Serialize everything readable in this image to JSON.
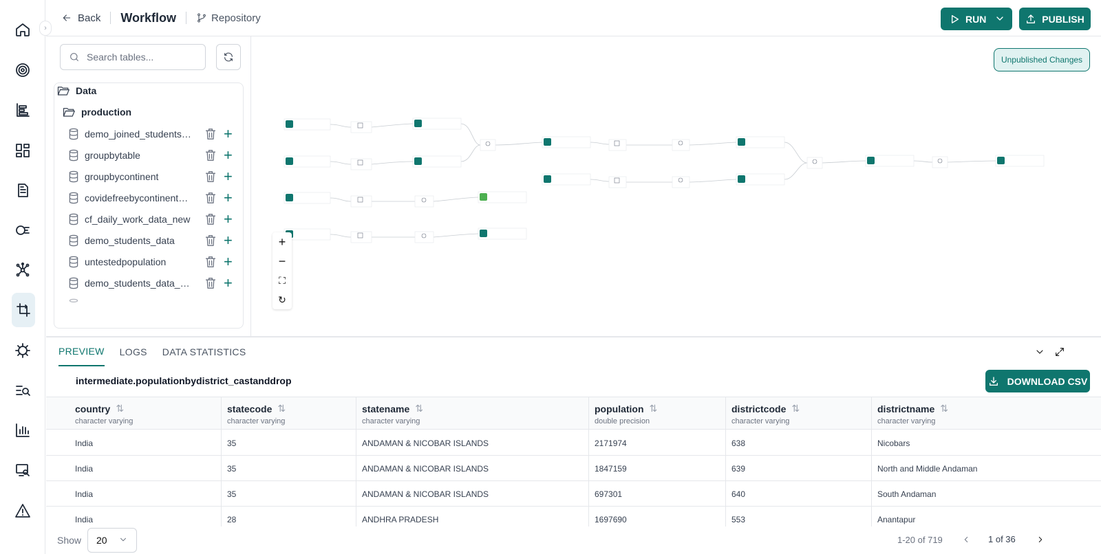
{
  "topbar": {
    "back_label": "Back",
    "title": "Workflow",
    "repository_label": "Repository",
    "run_label": "RUN",
    "publish_label": "PUBLISH"
  },
  "rail": {
    "icons": [
      "home-icon",
      "target-icon",
      "list-bars-icon",
      "dashboard-icon",
      "document-icon",
      "graph-search-icon",
      "network-icon",
      "transform-icon",
      "bug-icon",
      "search-list-icon",
      "bar-chart-icon",
      "monitor-search-icon",
      "alert-icon"
    ]
  },
  "panel": {
    "search_placeholder": "Search tables...",
    "root_folder": "Data",
    "schema_folder": "production",
    "tables": [
      "demo_joined_students…",
      "groupbytable",
      "groupbycontinent",
      "covidefreebycontinent_…",
      "cf_daily_work_data_new",
      "demo_students_data",
      "untestedpopulation",
      "demo_students_data_c…"
    ]
  },
  "canvas": {
    "status_badge": "Unpublished Changes"
  },
  "preview": {
    "tabs": [
      "PREVIEW",
      "LOGS",
      "DATA STATISTICS"
    ],
    "table_name": "intermediate.populationbydistrict_castanddrop",
    "download_label": "DOWNLOAD CSV",
    "columns": [
      {
        "name": "country",
        "type": "character varying"
      },
      {
        "name": "statecode",
        "type": "character varying"
      },
      {
        "name": "statename",
        "type": "character varying"
      },
      {
        "name": "population",
        "type": "double precision"
      },
      {
        "name": "districtcode",
        "type": "character varying"
      },
      {
        "name": "districtname",
        "type": "character varying"
      }
    ],
    "rows": [
      [
        "India",
        "35",
        "ANDAMAN & NICOBAR ISLANDS",
        "2171974",
        "638",
        "Nicobars"
      ],
      [
        "India",
        "35",
        "ANDAMAN & NICOBAR ISLANDS",
        "1847159",
        "639",
        "North and Middle Andaman"
      ],
      [
        "India",
        "35",
        "ANDAMAN & NICOBAR ISLANDS",
        "697301",
        "640",
        "South Andaman"
      ],
      [
        "India",
        "28",
        "ANDHRA PRADESH",
        "1697690",
        "553",
        "Anantapur"
      ]
    ],
    "show_label": "Show",
    "page_size": "20",
    "range_text": "1-20 of 719",
    "page_text": "1 of 36"
  },
  "colors": {
    "accent": "#0f766e",
    "badge_bg": "#e0f2f1",
    "active_rail_bg": "#e6f0f5"
  }
}
